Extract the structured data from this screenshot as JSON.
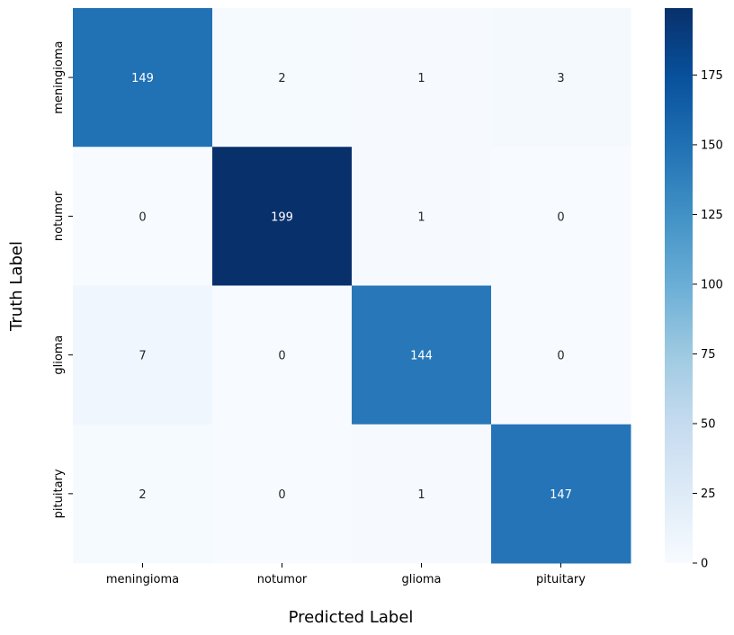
{
  "chart_data": {
    "type": "heatmap",
    "title": "",
    "xlabel": "Predicted Label",
    "ylabel": "Truth Label",
    "x_categories": [
      "meningioma",
      "notumor",
      "glioma",
      "pituitary"
    ],
    "y_categories": [
      "meningioma",
      "notumor",
      "glioma",
      "pituitary"
    ],
    "values": [
      [
        149,
        2,
        1,
        3
      ],
      [
        0,
        199,
        1,
        0
      ],
      [
        7,
        0,
        144,
        0
      ],
      [
        2,
        0,
        1,
        147
      ]
    ],
    "colormap": "Blues",
    "color_range": [
      0,
      199
    ],
    "colorbar_ticks": [
      0,
      25,
      50,
      75,
      100,
      125,
      150,
      175
    ],
    "annotations": true,
    "grid": false
  }
}
